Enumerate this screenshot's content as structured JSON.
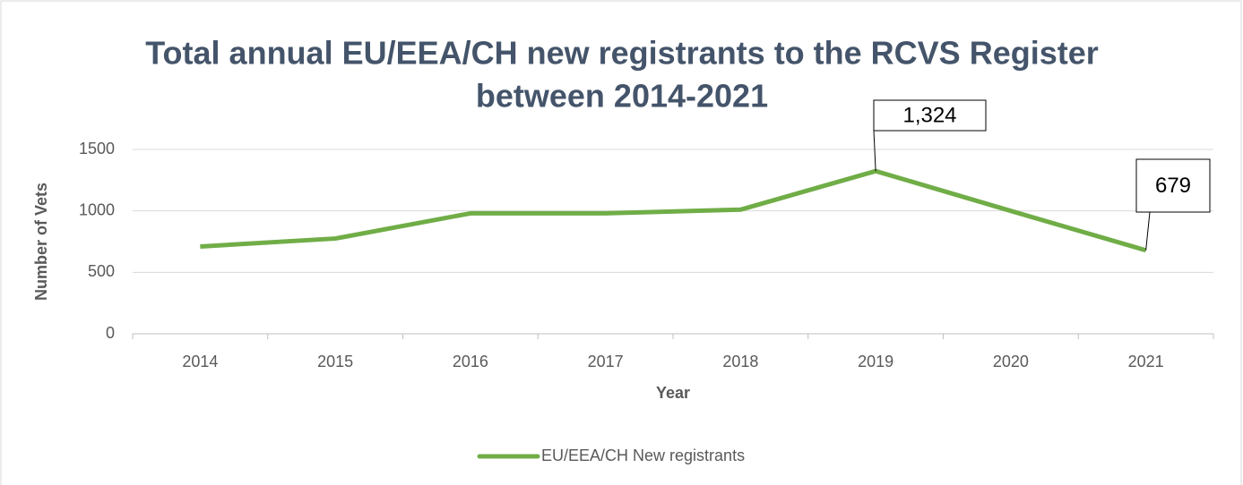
{
  "chart_data": {
    "type": "line",
    "title": [
      "Total annual EU/EEA/CH new registrants to the RCVS Register",
      "between 2014-2021"
    ],
    "x_label": "Year",
    "y_label": "Number of Vets",
    "categories": [
      "2014",
      "2015",
      "2016",
      "2017",
      "2018",
      "2019",
      "2020",
      "2021"
    ],
    "series": [
      {
        "name": "EU/EEA/CH New registrants",
        "color": "#70ad47",
        "values": [
          710,
          775,
          980,
          980,
          1010,
          1324,
          1000,
          679
        ],
        "value_labels": [
          null,
          null,
          null,
          null,
          null,
          "1,324",
          null,
          "679"
        ]
      }
    ],
    "ylim": [
      0,
      1500
    ],
    "yticks": [
      0,
      500,
      1000,
      1500
    ],
    "grid": true,
    "legend": "bottom"
  }
}
